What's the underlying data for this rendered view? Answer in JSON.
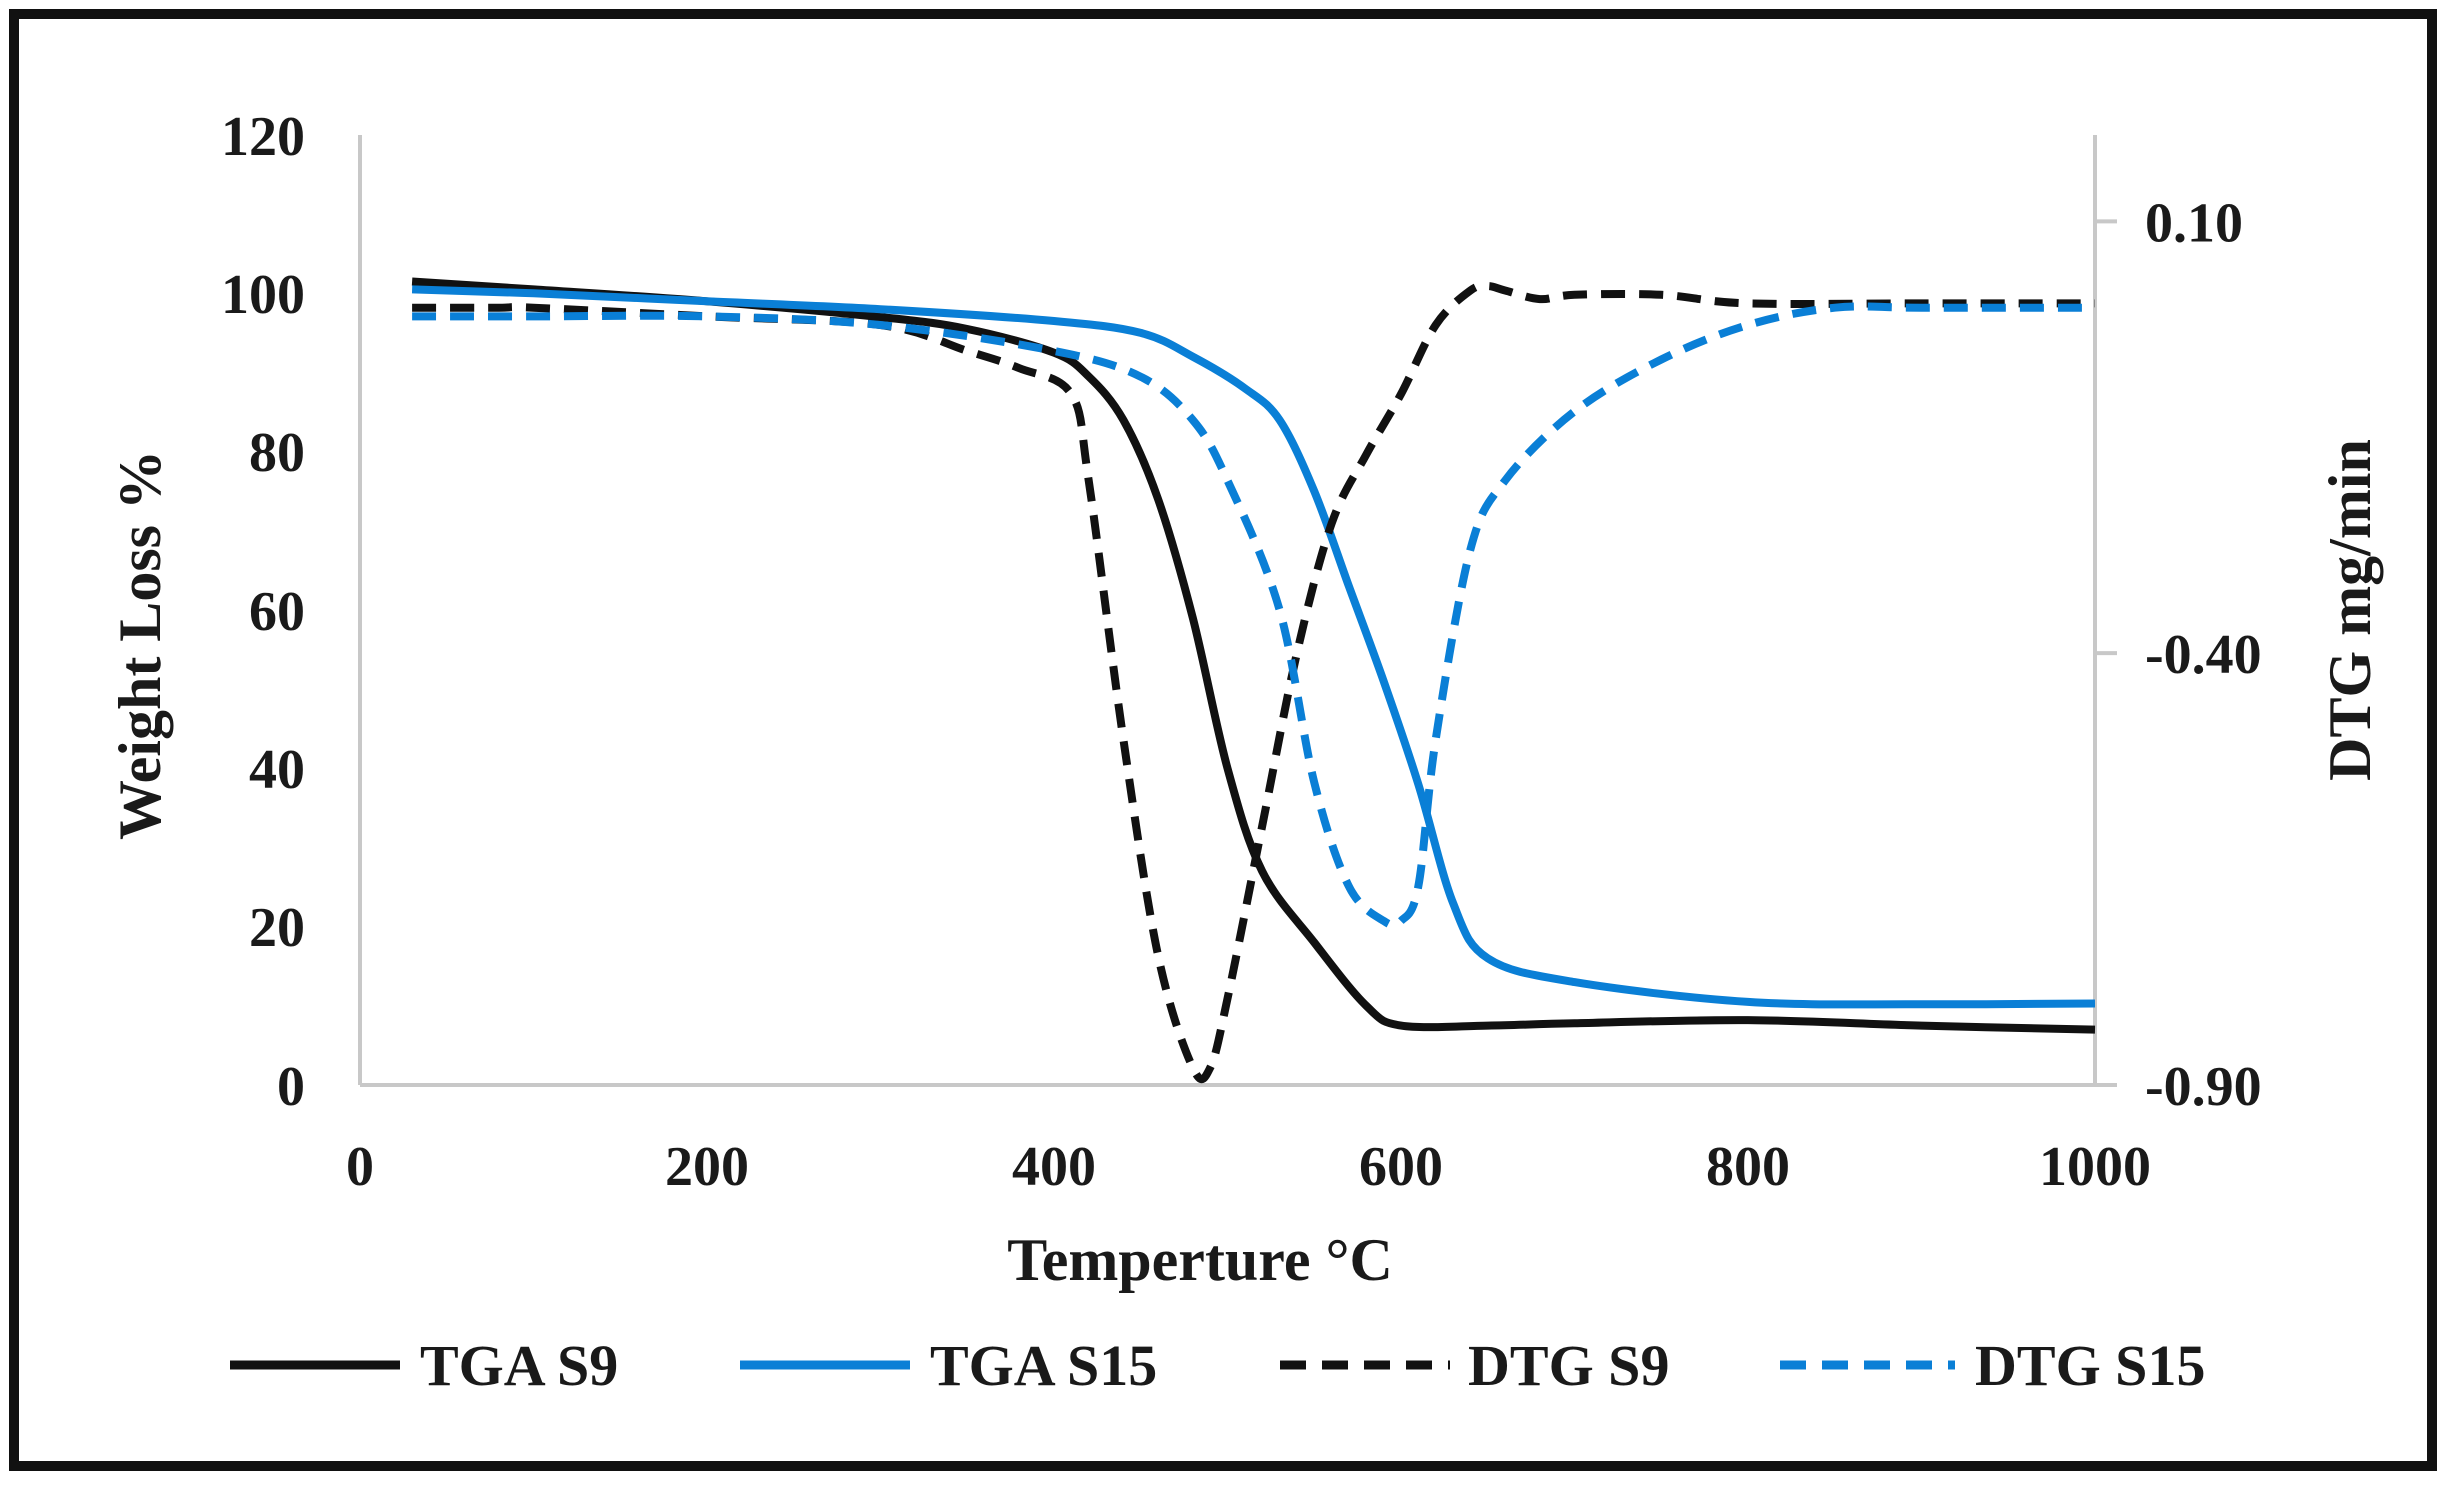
{
  "chart_data": {
    "type": "line",
    "xlabel": "Temperture °C",
    "ylabel": "Weight Loss %",
    "y2label": "DTG mg/min",
    "xlim": [
      0,
      1000
    ],
    "ylim": [
      0,
      120
    ],
    "y2lim": [
      -0.9,
      0.2
    ],
    "x_ticks": [
      "0",
      "200",
      "400",
      "600",
      "800",
      "1000"
    ],
    "y_ticks": [
      "0",
      "20",
      "40",
      "60",
      "80",
      "100",
      "120"
    ],
    "y2_ticks": [
      "0.10",
      "-0.40",
      "-0.90"
    ],
    "y2_tick_values": [
      0.1,
      -0.4,
      -0.9
    ],
    "legend_position": "bottom",
    "colors": {
      "black": "#111111",
      "blue": "#0a7fd6",
      "axis": "#c8c8c8"
    },
    "series": [
      {
        "name": "TGA S9",
        "axis": "left",
        "color": "#111111",
        "dash": "solid",
        "x": [
          30,
          100,
          200,
          300,
          350,
          400,
          420,
          440,
          460,
          480,
          500,
          520,
          550,
          580,
          600,
          650,
          700,
          800,
          900,
          1000
        ],
        "y": [
          101.5,
          100.5,
          99,
          97,
          95.5,
          92.5,
          89.5,
          84,
          74,
          59,
          40,
          27,
          18,
          10,
          7.5,
          7.5,
          7.8,
          8.2,
          7.5,
          7
        ]
      },
      {
        "name": "TGA S15",
        "axis": "left",
        "color": "#0a7fd6",
        "dash": "solid",
        "x": [
          30,
          100,
          200,
          300,
          400,
          450,
          480,
          510,
          530,
          550,
          570,
          590,
          610,
          630,
          650,
          700,
          800,
          900,
          1000
        ],
        "y": [
          100.5,
          100,
          99,
          98,
          96.5,
          95,
          92,
          88,
          84,
          75,
          63,
          51,
          38,
          23,
          16,
          13,
          10.5,
          10.2,
          10.3
        ]
      },
      {
        "name": "DTG S9",
        "axis": "right",
        "color": "#111111",
        "dash": "dashed",
        "x": [
          30,
          80,
          100,
          200,
          300,
          350,
          380,
          410,
          420,
          440,
          460,
          480,
          490,
          500,
          520,
          540,
          560,
          580,
          600,
          620,
          640,
          650,
          660,
          680,
          700,
          750,
          800,
          900,
          1000
        ],
        "y": [
          0.0,
          0.0,
          0.0,
          -0.01,
          -0.02,
          -0.05,
          -0.07,
          -0.1,
          -0.2,
          -0.5,
          -0.75,
          -0.88,
          -0.88,
          -0.8,
          -0.6,
          -0.4,
          -0.25,
          -0.17,
          -0.1,
          -0.02,
          0.02,
          0.025,
          0.02,
          0.01,
          0.015,
          0.015,
          0.005,
          0.005,
          0.005
        ]
      },
      {
        "name": "DTG S15",
        "axis": "right",
        "color": "#0a7fd6",
        "dash": "dashed",
        "x": [
          30,
          100,
          200,
          300,
          400,
          450,
          480,
          500,
          530,
          550,
          570,
          590,
          600,
          610,
          620,
          640,
          660,
          700,
          750,
          800,
          850,
          900,
          1000
        ],
        "y": [
          -0.01,
          -0.01,
          -0.01,
          -0.02,
          -0.05,
          -0.08,
          -0.13,
          -0.2,
          -0.35,
          -0.55,
          -0.67,
          -0.71,
          -0.71,
          -0.67,
          -0.5,
          -0.28,
          -0.2,
          -0.12,
          -0.06,
          -0.02,
          0.0,
          0.0,
          0.0
        ]
      }
    ]
  }
}
